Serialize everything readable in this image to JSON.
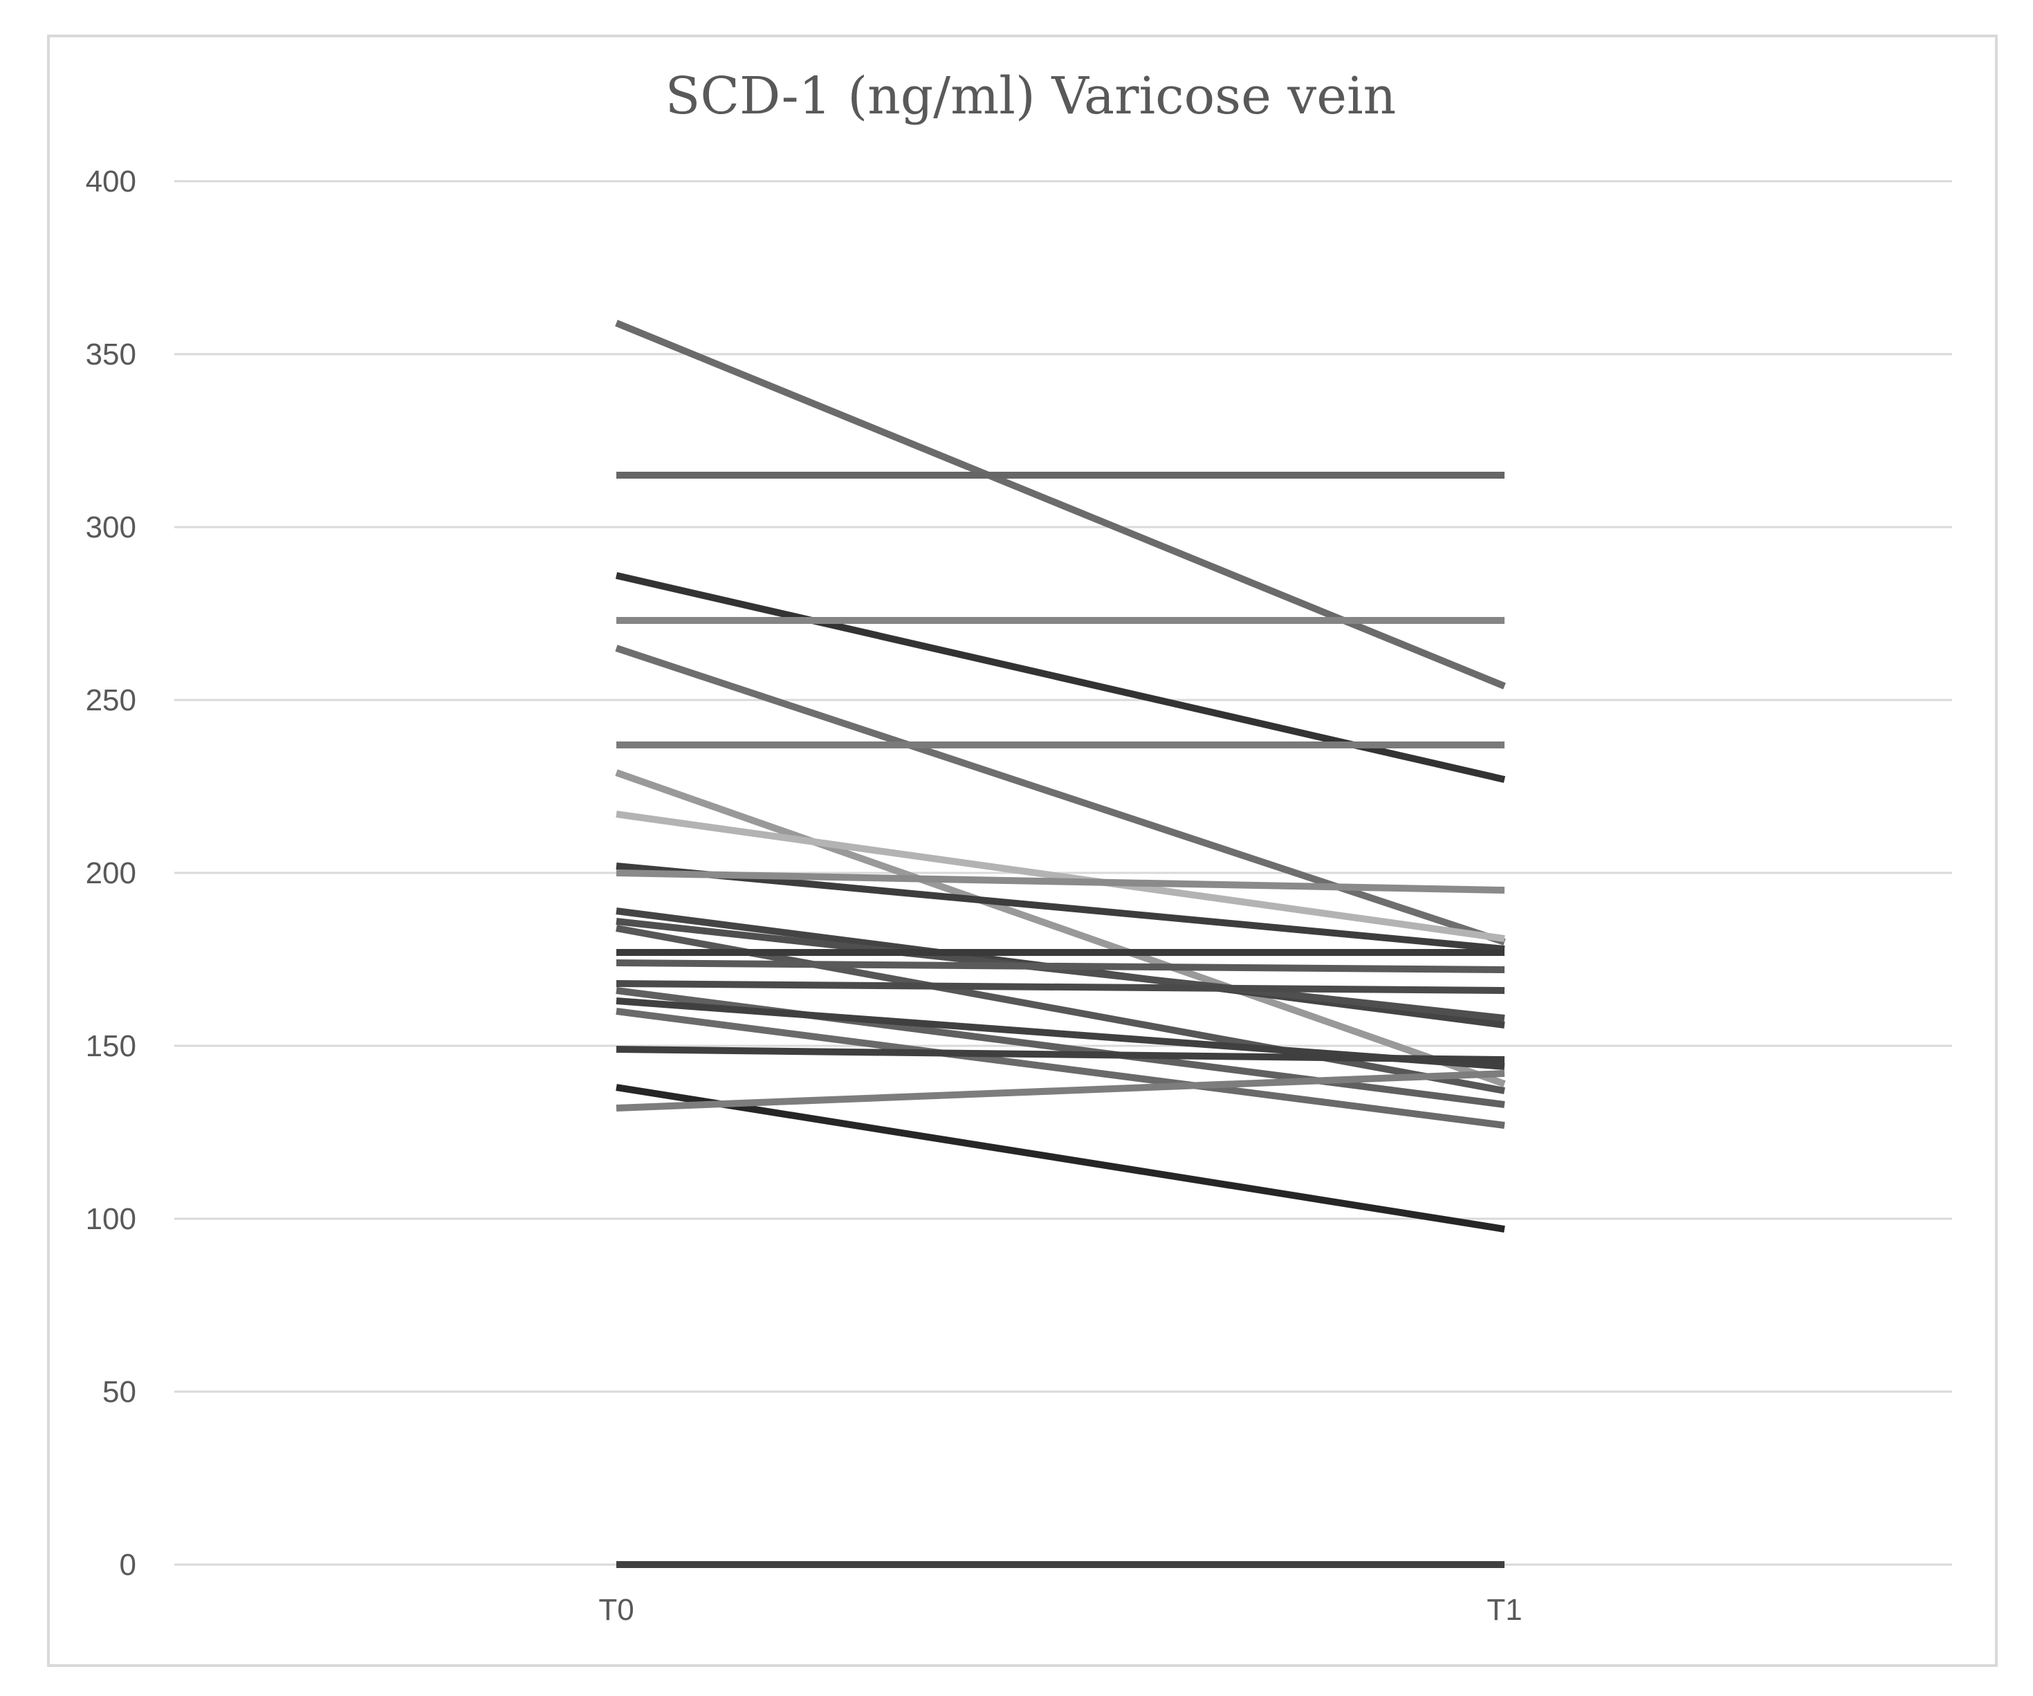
{
  "chart_data": {
    "type": "line",
    "title": "SCD-1 (ng/ml) Varicose vein",
    "xlabel": "",
    "ylabel": "",
    "categories": [
      "T0",
      "T1"
    ],
    "ylim": [
      0,
      400
    ],
    "yticks": [
      0,
      50,
      100,
      150,
      200,
      250,
      300,
      350,
      400
    ],
    "grid": true,
    "legend": "none",
    "series": [
      {
        "values": [
          359,
          254
        ],
        "color": "#6b6b6b"
      },
      {
        "values": [
          315,
          315
        ],
        "color": "#666666"
      },
      {
        "values": [
          286,
          227
        ],
        "color": "#333333"
      },
      {
        "values": [
          273,
          273
        ],
        "color": "#858585"
      },
      {
        "values": [
          265,
          180
        ],
        "color": "#6e6e6e"
      },
      {
        "values": [
          237,
          237
        ],
        "color": "#7a7a7a"
      },
      {
        "values": [
          229,
          139
        ],
        "color": "#999999"
      },
      {
        "values": [
          217,
          181
        ],
        "color": "#b3b3b3"
      },
      {
        "values": [
          202,
          178
        ],
        "color": "#3d3d3d"
      },
      {
        "values": [
          200,
          195
        ],
        "color": "#8a8a8a"
      },
      {
        "values": [
          189,
          156
        ],
        "color": "#444444"
      },
      {
        "values": [
          186,
          158
        ],
        "color": "#4f4f4f"
      },
      {
        "values": [
          184,
          137
        ],
        "color": "#575757"
      },
      {
        "values": [
          177,
          177
        ],
        "color": "#3a3a3a"
      },
      {
        "values": [
          174,
          172
        ],
        "color": "#5a5a5a"
      },
      {
        "values": [
          168,
          166
        ],
        "color": "#4a4a4a"
      },
      {
        "values": [
          166,
          133
        ],
        "color": "#606060"
      },
      {
        "values": [
          163,
          144
        ],
        "color": "#404040"
      },
      {
        "values": [
          160,
          127
        ],
        "color": "#6a6a6a"
      },
      {
        "values": [
          149,
          146
        ],
        "color": "#3f3f3f"
      },
      {
        "values": [
          138,
          97
        ],
        "color": "#262626"
      },
      {
        "values": [
          132,
          142
        ],
        "color": "#7d7d7d"
      },
      {
        "values": [
          0,
          0
        ],
        "color": "#404040"
      }
    ]
  }
}
